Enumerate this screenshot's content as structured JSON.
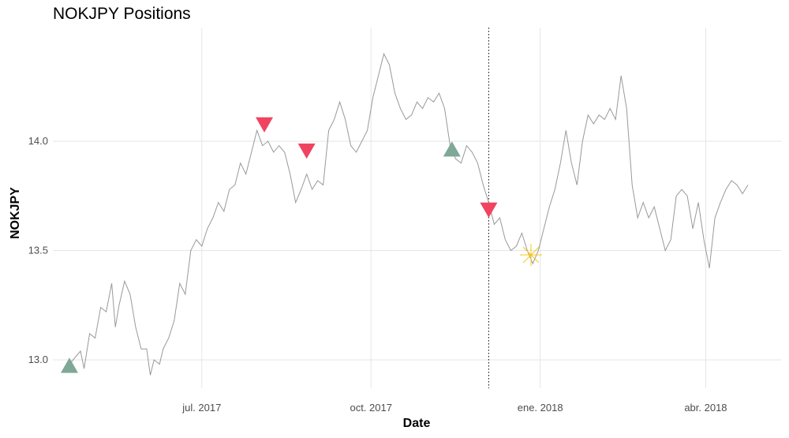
{
  "chart_data": {
    "type": "line",
    "title": "NOKJPY Positions",
    "xlabel": "Date",
    "ylabel": "NOKJPY",
    "x_tick_labels": [
      "jul. 2017",
      "oct. 2017",
      "ene. 2018",
      "abr. 2018"
    ],
    "x_tick_dates": [
      "2017-07-01",
      "2017-10-01",
      "2018-01-01",
      "2018-04-01"
    ],
    "y_ticks": [
      13.0,
      13.5,
      14.0
    ],
    "xlim": [
      "2017-04-11",
      "2018-05-12"
    ],
    "ylim": [
      12.87,
      14.52
    ],
    "grid": true,
    "series": [
      {
        "color": "#999999",
        "points": [
          [
            "2017-04-18",
            12.96
          ],
          [
            "2017-04-22",
            13.0
          ],
          [
            "2017-04-26",
            13.04
          ],
          [
            "2017-04-28",
            12.96
          ],
          [
            "2017-05-01",
            13.12
          ],
          [
            "2017-05-04",
            13.1
          ],
          [
            "2017-05-07",
            13.24
          ],
          [
            "2017-05-10",
            13.22
          ],
          [
            "2017-05-13",
            13.35
          ],
          [
            "2017-05-15",
            13.15
          ],
          [
            "2017-05-17",
            13.25
          ],
          [
            "2017-05-20",
            13.36
          ],
          [
            "2017-05-23",
            13.3
          ],
          [
            "2017-05-26",
            13.15
          ],
          [
            "2017-05-29",
            13.05
          ],
          [
            "2017-06-01",
            13.05
          ],
          [
            "2017-06-03",
            12.93
          ],
          [
            "2017-06-05",
            13.0
          ],
          [
            "2017-06-08",
            12.98
          ],
          [
            "2017-06-10",
            13.05
          ],
          [
            "2017-06-13",
            13.1
          ],
          [
            "2017-06-16",
            13.18
          ],
          [
            "2017-06-19",
            13.35
          ],
          [
            "2017-06-22",
            13.3
          ],
          [
            "2017-06-25",
            13.5
          ],
          [
            "2017-06-28",
            13.55
          ],
          [
            "2017-07-01",
            13.52
          ],
          [
            "2017-07-04",
            13.6
          ],
          [
            "2017-07-07",
            13.65
          ],
          [
            "2017-07-10",
            13.72
          ],
          [
            "2017-07-13",
            13.68
          ],
          [
            "2017-07-16",
            13.78
          ],
          [
            "2017-07-19",
            13.8
          ],
          [
            "2017-07-22",
            13.9
          ],
          [
            "2017-07-25",
            13.85
          ],
          [
            "2017-07-28",
            13.95
          ],
          [
            "2017-07-31",
            14.05
          ],
          [
            "2017-08-03",
            13.98
          ],
          [
            "2017-08-06",
            14.0
          ],
          [
            "2017-08-09",
            13.95
          ],
          [
            "2017-08-12",
            13.98
          ],
          [
            "2017-08-15",
            13.95
          ],
          [
            "2017-08-18",
            13.85
          ],
          [
            "2017-08-21",
            13.72
          ],
          [
            "2017-08-24",
            13.78
          ],
          [
            "2017-08-27",
            13.85
          ],
          [
            "2017-08-30",
            13.78
          ],
          [
            "2017-09-02",
            13.82
          ],
          [
            "2017-09-05",
            13.8
          ],
          [
            "2017-09-08",
            14.05
          ],
          [
            "2017-09-11",
            14.1
          ],
          [
            "2017-09-14",
            14.18
          ],
          [
            "2017-09-17",
            14.1
          ],
          [
            "2017-09-20",
            13.98
          ],
          [
            "2017-09-23",
            13.95
          ],
          [
            "2017-09-26",
            14.0
          ],
          [
            "2017-09-29",
            14.05
          ],
          [
            "2017-10-02",
            14.2
          ],
          [
            "2017-10-05",
            14.3
          ],
          [
            "2017-10-08",
            14.4
          ],
          [
            "2017-10-11",
            14.35
          ],
          [
            "2017-10-14",
            14.22
          ],
          [
            "2017-10-17",
            14.15
          ],
          [
            "2017-10-20",
            14.1
          ],
          [
            "2017-10-23",
            14.12
          ],
          [
            "2017-10-26",
            14.18
          ],
          [
            "2017-10-29",
            14.15
          ],
          [
            "2017-11-01",
            14.2
          ],
          [
            "2017-11-04",
            14.18
          ],
          [
            "2017-11-07",
            14.22
          ],
          [
            "2017-11-10",
            14.15
          ],
          [
            "2017-11-13",
            13.98
          ],
          [
            "2017-11-16",
            13.92
          ],
          [
            "2017-11-19",
            13.9
          ],
          [
            "2017-11-22",
            13.98
          ],
          [
            "2017-11-25",
            13.95
          ],
          [
            "2017-11-28",
            13.9
          ],
          [
            "2017-12-01",
            13.8
          ],
          [
            "2017-12-04",
            13.72
          ],
          [
            "2017-12-07",
            13.62
          ],
          [
            "2017-12-10",
            13.65
          ],
          [
            "2017-12-13",
            13.55
          ],
          [
            "2017-12-16",
            13.5
          ],
          [
            "2017-12-19",
            13.52
          ],
          [
            "2017-12-22",
            13.58
          ],
          [
            "2017-12-25",
            13.5
          ],
          [
            "2017-12-28",
            13.44
          ],
          [
            "2017-12-31",
            13.5
          ],
          [
            "2018-01-03",
            13.6
          ],
          [
            "2018-01-06",
            13.7
          ],
          [
            "2018-01-09",
            13.78
          ],
          [
            "2018-01-12",
            13.9
          ],
          [
            "2018-01-15",
            14.05
          ],
          [
            "2018-01-18",
            13.9
          ],
          [
            "2018-01-21",
            13.8
          ],
          [
            "2018-01-24",
            14.0
          ],
          [
            "2018-01-27",
            14.12
          ],
          [
            "2018-01-30",
            14.08
          ],
          [
            "2018-02-02",
            14.12
          ],
          [
            "2018-02-05",
            14.1
          ],
          [
            "2018-02-08",
            14.15
          ],
          [
            "2018-02-11",
            14.1
          ],
          [
            "2018-02-14",
            14.3
          ],
          [
            "2018-02-17",
            14.15
          ],
          [
            "2018-02-20",
            13.8
          ],
          [
            "2018-02-23",
            13.65
          ],
          [
            "2018-02-26",
            13.72
          ],
          [
            "2018-03-01",
            13.65
          ],
          [
            "2018-03-04",
            13.7
          ],
          [
            "2018-03-07",
            13.6
          ],
          [
            "2018-03-10",
            13.5
          ],
          [
            "2018-03-13",
            13.55
          ],
          [
            "2018-03-16",
            13.75
          ],
          [
            "2018-03-19",
            13.78
          ],
          [
            "2018-03-22",
            13.75
          ],
          [
            "2018-03-25",
            13.6
          ],
          [
            "2018-03-28",
            13.72
          ],
          [
            "2018-03-31",
            13.55
          ],
          [
            "2018-04-03",
            13.42
          ],
          [
            "2018-04-06",
            13.65
          ],
          [
            "2018-04-09",
            13.72
          ],
          [
            "2018-04-12",
            13.78
          ],
          [
            "2018-04-15",
            13.82
          ],
          [
            "2018-04-18",
            13.8
          ],
          [
            "2018-04-21",
            13.76
          ],
          [
            "2018-04-24",
            13.8
          ]
        ]
      }
    ],
    "positions": [
      {
        "date": "2017-04-20",
        "value": 12.97,
        "marker": "triangle-up",
        "color": "#7fa896"
      },
      {
        "date": "2017-08-04",
        "value": 14.08,
        "marker": "triangle-down",
        "color": "#f0435f"
      },
      {
        "date": "2017-08-27",
        "value": 13.96,
        "marker": "triangle-down",
        "color": "#f0435f"
      },
      {
        "date": "2017-11-14",
        "value": 13.96,
        "marker": "triangle-up",
        "color": "#7fa896"
      },
      {
        "date": "2017-12-04",
        "value": 13.69,
        "marker": "triangle-down",
        "color": "#f0435f"
      },
      {
        "date": "2017-12-27",
        "value": 13.48,
        "marker": "asterisk",
        "color": "#f5c518"
      }
    ],
    "vline": {
      "date": "2017-12-04",
      "style": "dotted",
      "color": "#000000"
    }
  }
}
